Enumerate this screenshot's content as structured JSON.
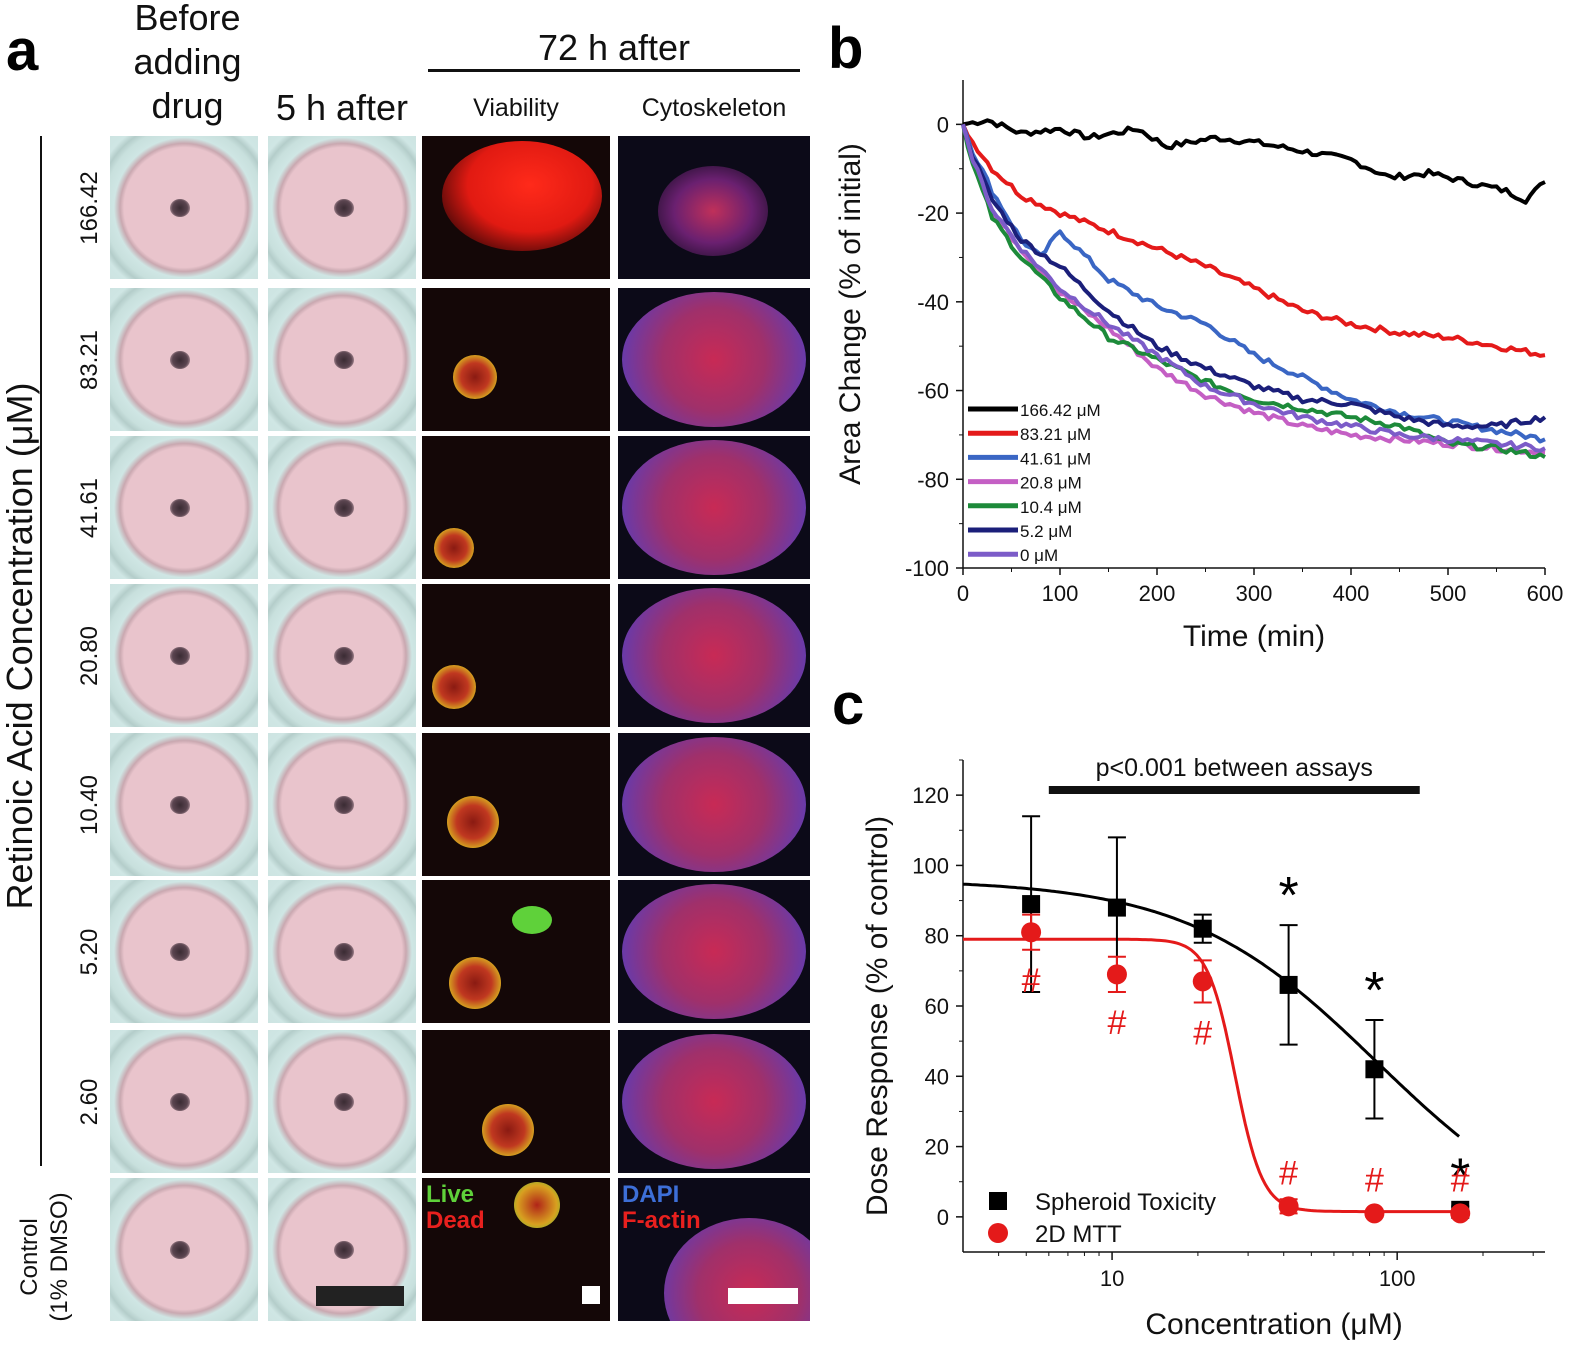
{
  "panel_a": {
    "letter": "a",
    "headers": {
      "before": [
        "Before",
        "adding",
        "drug"
      ],
      "five_h": "5 h after",
      "seventy_two": "72 h after",
      "viability": "Viability",
      "cytoskeleton": "Cytoskeleton"
    },
    "y_axis_title": "Retinoic Acid Concentration (μM)",
    "rows": [
      "166.42",
      "83.21",
      "41.61",
      "20.80",
      "10.40",
      "5.20",
      "2.60"
    ],
    "control_label": [
      "Control",
      "(1% DMSO)"
    ],
    "viability_labels": {
      "live": "Live",
      "dead": "Dead"
    },
    "cyto_labels": {
      "dapi": "DAPI",
      "factin": "F-actin"
    },
    "colors": {
      "live": "#5fd13a",
      "dead": "#e8201e",
      "dapi": "#3d6fd8",
      "factin": "#e8201e"
    }
  },
  "panel_b": {
    "letter": "b",
    "chart_data": {
      "type": "line",
      "xlabel": "Time (min)",
      "ylabel": "Area Change (% of initial)",
      "xlim": [
        0,
        600
      ],
      "ylim": [
        -100,
        10
      ],
      "xticks": [
        0,
        100,
        200,
        300,
        400,
        500,
        600
      ],
      "yticks": [
        0,
        -20,
        -40,
        -60,
        -80,
        -100
      ],
      "legend_position": "bottom-left",
      "series": [
        {
          "name": "166.42 μM",
          "color": "#000000",
          "x": [
            0,
            25,
            60,
            100,
            130,
            180,
            210,
            260,
            300,
            350,
            400,
            440,
            480,
            520,
            560,
            580,
            600
          ],
          "y": [
            0,
            1,
            -2,
            -1,
            -3,
            -1,
            -5,
            -3,
            -4,
            -6,
            -8,
            -12,
            -11,
            -13,
            -15,
            -17,
            -13
          ]
        },
        {
          "name": "83.21 μM",
          "color": "#e41a1a",
          "x": [
            0,
            10,
            30,
            60,
            100,
            150,
            200,
            250,
            300,
            350,
            400,
            450,
            500,
            550,
            600
          ],
          "y": [
            0,
            -4,
            -10,
            -16,
            -20,
            -24,
            -28,
            -32,
            -37,
            -42,
            -45,
            -47,
            -48,
            -50,
            -52
          ]
        },
        {
          "name": "41.61 μM",
          "color": "#3a66c4",
          "x": [
            0,
            10,
            30,
            60,
            80,
            100,
            150,
            200,
            250,
            300,
            350,
            400,
            450,
            500,
            550,
            600
          ],
          "y": [
            0,
            -6,
            -15,
            -26,
            -30,
            -24,
            -35,
            -41,
            -45,
            -52,
            -57,
            -62,
            -65,
            -67,
            -69,
            -71
          ]
        },
        {
          "name": "20.8 μM",
          "color": "#c45fc4",
          "x": [
            0,
            10,
            30,
            60,
            100,
            150,
            200,
            250,
            300,
            350,
            400,
            450,
            500,
            550,
            600
          ],
          "y": [
            0,
            -8,
            -20,
            -28,
            -38,
            -46,
            -55,
            -61,
            -65,
            -68,
            -70,
            -71,
            -72,
            -73,
            -74
          ]
        },
        {
          "name": "10.4 μM",
          "color": "#1d8a3a",
          "x": [
            0,
            10,
            30,
            60,
            100,
            150,
            200,
            250,
            300,
            350,
            400,
            450,
            500,
            550,
            600
          ],
          "y": [
            0,
            -9,
            -21,
            -30,
            -39,
            -48,
            -53,
            -58,
            -62,
            -64,
            -66,
            -68,
            -72,
            -73,
            -75
          ]
        },
        {
          "name": "5.2 μM",
          "color": "#1b1f7a",
          "x": [
            0,
            10,
            30,
            60,
            100,
            150,
            200,
            250,
            300,
            350,
            400,
            450,
            500,
            550,
            600
          ],
          "y": [
            0,
            -7,
            -17,
            -26,
            -32,
            -42,
            -50,
            -55,
            -59,
            -62,
            -63,
            -66,
            -68,
            -68,
            -66
          ]
        },
        {
          "name": "0 μM",
          "color": "#7c5cc8",
          "x": [
            0,
            10,
            30,
            60,
            100,
            150,
            200,
            250,
            300,
            350,
            400,
            450,
            500,
            550,
            600
          ],
          "y": [
            0,
            -8,
            -19,
            -28,
            -37,
            -45,
            -52,
            -59,
            -63,
            -66,
            -68,
            -70,
            -71,
            -72,
            -73
          ]
        }
      ]
    }
  },
  "panel_c": {
    "letter": "c",
    "chart_data": {
      "type": "scatter",
      "xscale": "log",
      "xlabel": "Concentration (μM)",
      "ylabel": "Dose Response (% of control)",
      "xlim": [
        3,
        330
      ],
      "ylim": [
        -10,
        130
      ],
      "xticks": [
        10,
        100
      ],
      "yticks": [
        0,
        20,
        40,
        60,
        80,
        100,
        120
      ],
      "annotation": "p<0.001 between assays",
      "annotation_span": [
        6,
        120
      ],
      "legend_position": "bottom-left",
      "series": [
        {
          "name": "Spheroid Toxicity",
          "color": "#000000",
          "marker": "square",
          "x": [
            5.2,
            10.4,
            20.8,
            41.61,
            83.21,
            166.42
          ],
          "y": [
            89,
            88,
            82,
            66,
            42,
            2
          ],
          "err": [
            25,
            20,
            4,
            17,
            14,
            1
          ],
          "significance": [
            {
              "x": 41.61,
              "symbol": "*"
            },
            {
              "x": 83.21,
              "symbol": "*"
            },
            {
              "x": 166.42,
              "symbol": "*"
            }
          ],
          "fit": {
            "top": 96,
            "bottom": -8,
            "ic50": 85,
            "hill": 1.3
          }
        },
        {
          "name": "2D MTT",
          "color": "#e41a1a",
          "marker": "circle",
          "x": [
            5.2,
            10.4,
            20.8,
            41.61,
            83.21,
            166.42
          ],
          "y": [
            81,
            69,
            67,
            3,
            1,
            1
          ],
          "err": [
            5,
            5,
            6,
            2,
            1,
            1
          ],
          "significance": [
            {
              "x": 5.2,
              "symbol": "#"
            },
            {
              "x": 10.4,
              "symbol": "#"
            },
            {
              "x": 20.8,
              "symbol": "#"
            },
            {
              "x": 41.61,
              "symbol": "#"
            },
            {
              "x": 83.21,
              "symbol": "#"
            },
            {
              "x": 166.42,
              "symbol": "#"
            }
          ],
          "fit": {
            "top": 79,
            "bottom": 1.5,
            "ic50": 27,
            "hill": 9
          }
        }
      ]
    }
  }
}
